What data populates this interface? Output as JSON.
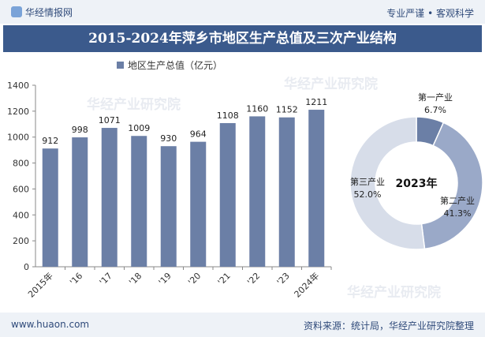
{
  "header": {
    "brand": "华经情报网",
    "slogan": "专业严谨 • 客观科学"
  },
  "watermarks": [
    "华经产业研究院",
    "华经产业研究院",
    "华经产业研究院"
  ],
  "footer": {
    "site": "www.huaon.com",
    "source": "资料来源：统计局，华经产业研究院整理"
  },
  "chart_data": [
    {
      "type": "bar",
      "title": "2015-2024年萍乡市地区生产总值及三次产业结构",
      "categories": [
        "2015年",
        "'16",
        "'17",
        "'18",
        "'19",
        "'20",
        "'21",
        "'22",
        "'23",
        "2024年"
      ],
      "series": [
        {
          "name": "地区生产总值（亿元）",
          "values": [
            912,
            998,
            1071,
            1009,
            930,
            964,
            1108,
            1160,
            1152,
            1211
          ]
        }
      ],
      "ylim": [
        0,
        1400
      ],
      "yticks": [
        0,
        200,
        400,
        600,
        800,
        1000,
        1200,
        1400
      ],
      "xlabel": "",
      "ylabel": "",
      "legend": "top",
      "colors": {
        "bar": "#6b7fa6"
      }
    },
    {
      "type": "pie",
      "center_label": "2023年",
      "slices": [
        {
          "label": "第一产业",
          "value": 6.7,
          "text": "6.7%",
          "color": "#6b7fa6"
        },
        {
          "label": "第二产业",
          "value": 41.3,
          "text": "41.3%",
          "color": "#9aa9c8"
        },
        {
          "label": "第三产业",
          "value": 52.0,
          "text": "52.0%",
          "color": "#d7dde9"
        }
      ]
    }
  ]
}
